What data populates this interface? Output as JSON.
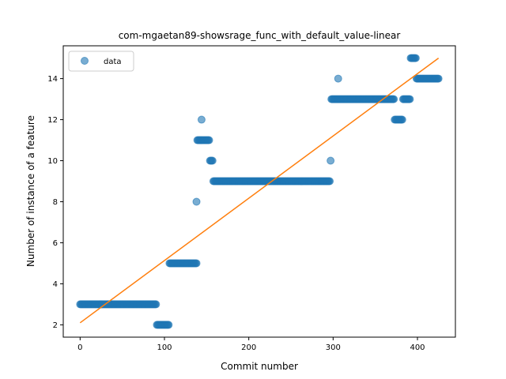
{
  "chart_data": {
    "type": "scatter",
    "title": "com-mgaetan89-showsrage_func_with_default_value-linear",
    "xlabel": "Commit number",
    "ylabel": "Number of instance of a feature",
    "xlim": [
      -20,
      445
    ],
    "ylim": [
      1.4,
      15.6
    ],
    "xticks": [
      0,
      100,
      200,
      300,
      400
    ],
    "yticks": [
      2,
      4,
      6,
      8,
      10,
      12,
      14
    ],
    "legend": {
      "placement": "top-left",
      "entries": [
        "data"
      ]
    },
    "grid": false,
    "colors": {
      "scatter": "#1f77b4",
      "fit": "#ff7f0e"
    },
    "segments": [
      {
        "x_start": 0,
        "x_end": 90,
        "y": 3
      },
      {
        "x_start": 91,
        "x_end": 105,
        "y": 2
      },
      {
        "x_start": 106,
        "x_end": 138,
        "y": 5
      },
      {
        "x_start": 138,
        "x_end": 138,
        "y": 8
      },
      {
        "x_start": 139,
        "x_end": 153,
        "y": 11
      },
      {
        "x_start": 144,
        "x_end": 144,
        "y": 12
      },
      {
        "x_start": 154,
        "x_end": 157,
        "y": 10
      },
      {
        "x_start": 158,
        "x_end": 296,
        "y": 9
      },
      {
        "x_start": 297,
        "x_end": 297,
        "y": 10
      },
      {
        "x_start": 298,
        "x_end": 372,
        "y": 13
      },
      {
        "x_start": 306,
        "x_end": 306,
        "y": 14
      },
      {
        "x_start": 373,
        "x_end": 382,
        "y": 12
      },
      {
        "x_start": 383,
        "x_end": 391,
        "y": 13
      },
      {
        "x_start": 392,
        "x_end": 398,
        "y": 15
      },
      {
        "x_start": 399,
        "x_end": 425,
        "y": 14
      }
    ],
    "fit_line": {
      "x": [
        0,
        425
      ],
      "y": [
        2.1,
        15.0
      ]
    }
  }
}
